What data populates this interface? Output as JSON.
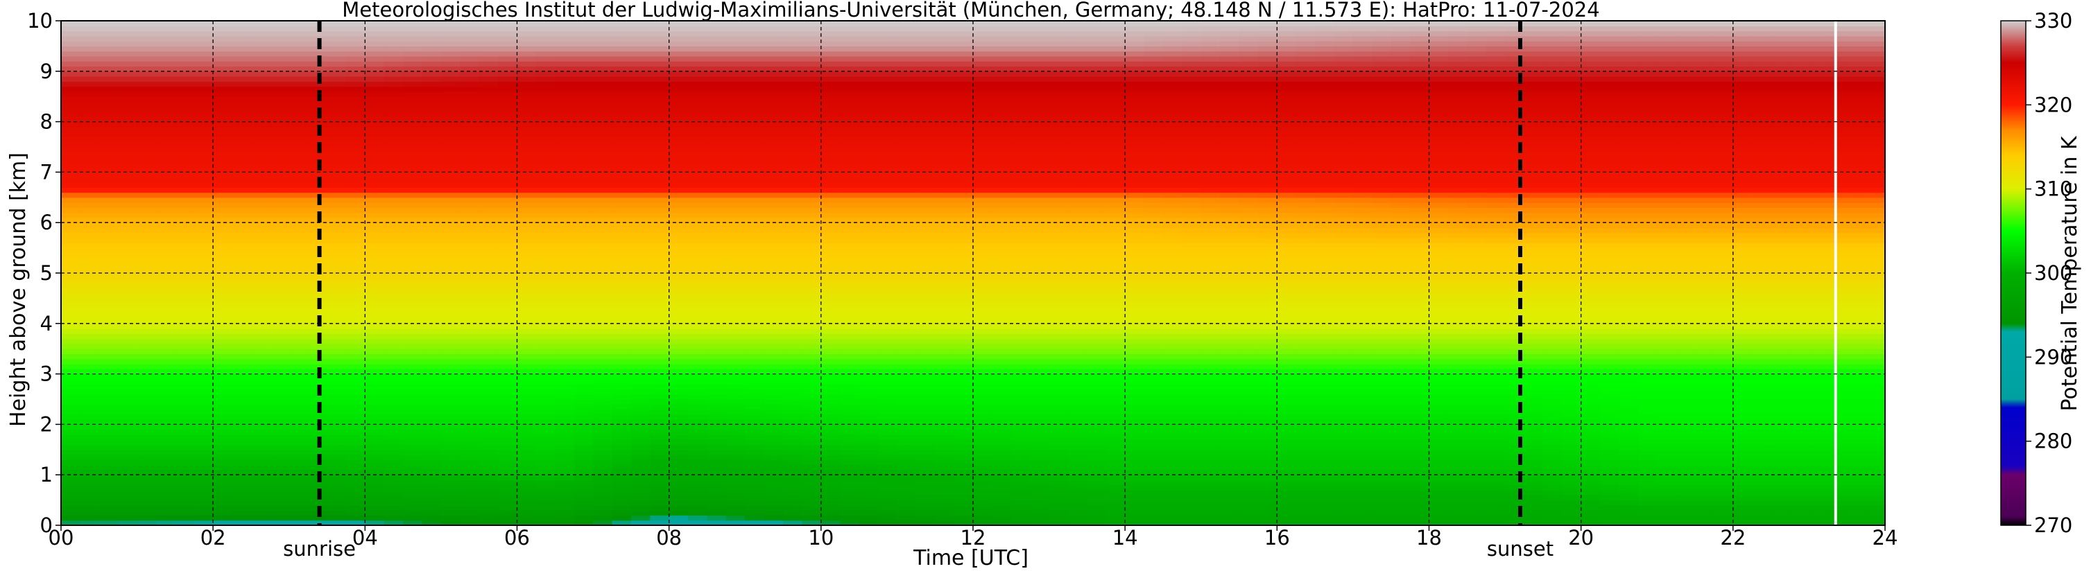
{
  "chart_data": {
    "type": "heatmap",
    "title": "Meteorologisches Institut der Ludwig-Maximilians-Universität (München, Germany; 48.148 N / 11.573 E):    HatPro: 11-07-2024",
    "xlabel": "Time [UTC]",
    "ylabel": "Height above ground [km]",
    "xlim": [
      0,
      24
    ],
    "ylim": [
      0,
      10
    ],
    "x_tick_labels": [
      "00",
      "02",
      "04",
      "06",
      "08",
      "10",
      "12",
      "14",
      "16",
      "18",
      "20",
      "22",
      "24"
    ],
    "y_tick_labels": [
      "0",
      "1",
      "2",
      "3",
      "4",
      "5",
      "6",
      "7",
      "8",
      "9",
      "10"
    ],
    "grid": true,
    "grid_style": "dashed black",
    "colorbar": {
      "label": "Potential Temperature in K",
      "range": [
        270,
        330
      ],
      "tick_labels": [
        "270",
        "280",
        "290",
        "300",
        "310",
        "320",
        "330"
      ],
      "stops": [
        {
          "value": 270,
          "color": "#000000"
        },
        {
          "value": 271,
          "color": "#4b0055"
        },
        {
          "value": 276,
          "color": "#6a006a"
        },
        {
          "value": 277,
          "color": "#1a00c0"
        },
        {
          "value": 284,
          "color": "#0000cc"
        },
        {
          "value": 285,
          "color": "#00a0a0"
        },
        {
          "value": 293,
          "color": "#00a8a8"
        },
        {
          "value": 294,
          "color": "#009400"
        },
        {
          "value": 300,
          "color": "#00b000"
        },
        {
          "value": 305,
          "color": "#00ff00"
        },
        {
          "value": 310,
          "color": "#dcf000"
        },
        {
          "value": 314,
          "color": "#ffcc00"
        },
        {
          "value": 317,
          "color": "#ff8c00"
        },
        {
          "value": 320,
          "color": "#ff1a00"
        },
        {
          "value": 325,
          "color": "#cc0000"
        },
        {
          "value": 327,
          "color": "#cc4040"
        },
        {
          "value": 330,
          "color": "#d0d0d0"
        }
      ]
    },
    "profile_height_km": [
      0,
      0.3,
      0.6,
      1.0,
      2.0,
      3.0,
      3.5,
      4.0,
      4.5,
      5.0,
      5.5,
      6.0,
      6.5,
      6.7,
      7.5,
      8.5,
      9.0,
      9.5,
      10.0
    ],
    "profiles": [
      {
        "time_h": 0.0,
        "theta_K": [
          293,
          296,
          298,
          300,
          303,
          305,
          308,
          310,
          311,
          313,
          314,
          315,
          317,
          321,
          322,
          324,
          327,
          329,
          330
        ]
      },
      {
        "time_h": 3.5,
        "theta_K": [
          292,
          296,
          298,
          300,
          303,
          305,
          308,
          310,
          311,
          313,
          314,
          315,
          317,
          321,
          322,
          324,
          327,
          329,
          330
        ]
      },
      {
        "time_h": 6.5,
        "theta_K": [
          295,
          297,
          299,
          301,
          303,
          305,
          308,
          310,
          311,
          313,
          314,
          315,
          317,
          321,
          322,
          324,
          326,
          329,
          330
        ]
      },
      {
        "time_h": 8.0,
        "theta_K": [
          291,
          295,
          297,
          299,
          302,
          305,
          308,
          310,
          311,
          313,
          314,
          315,
          317,
          321,
          322,
          324,
          326,
          329,
          330
        ]
      },
      {
        "time_h": 11.0,
        "theta_K": [
          294,
          297,
          299,
          300,
          303,
          305,
          308,
          310,
          311,
          313,
          314,
          315,
          317,
          321,
          322,
          324,
          326,
          329,
          330
        ]
      },
      {
        "time_h": 14.0,
        "theta_K": [
          298,
          299,
          300,
          301,
          303,
          305,
          308,
          310,
          311,
          313,
          314,
          315,
          317,
          321,
          322,
          324,
          326,
          329,
          330
        ]
      },
      {
        "time_h": 19.0,
        "theta_K": [
          298,
          299,
          300,
          301,
          303,
          305,
          308,
          310,
          311,
          313,
          314,
          316,
          318,
          321,
          322,
          324,
          326,
          328,
          330
        ]
      },
      {
        "time_h": 20.9,
        "theta_K": [
          299,
          300,
          301,
          302,
          304,
          305,
          308,
          310,
          311,
          313,
          314,
          316,
          318,
          321,
          322,
          324,
          326,
          328,
          330
        ]
      },
      {
        "time_h": 24.0,
        "theta_K": [
          299,
          300,
          301,
          302,
          304,
          305,
          308,
          310,
          311,
          313,
          314,
          316,
          318,
          321,
          322,
          324,
          326,
          328,
          330
        ]
      }
    ],
    "missing_data_time_h": 23.35,
    "markers": [
      {
        "label": "sunrise",
        "time_h": 3.4
      },
      {
        "label": "sunset",
        "time_h": 19.2
      }
    ]
  }
}
